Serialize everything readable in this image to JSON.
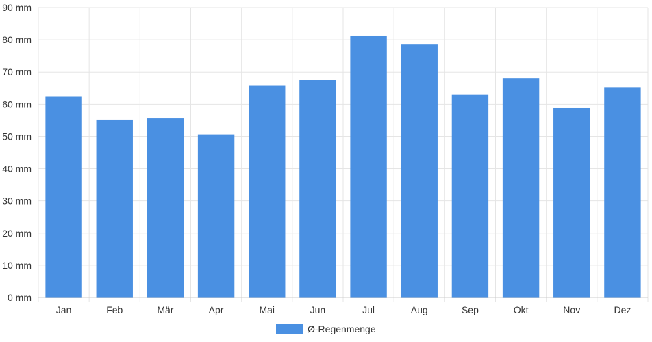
{
  "chart_data": {
    "type": "bar",
    "categories": [
      "Jan",
      "Feb",
      "Mär",
      "Apr",
      "Mai",
      "Jun",
      "Jul",
      "Aug",
      "Sep",
      "Okt",
      "Nov",
      "Dez"
    ],
    "series": [
      {
        "name": "Ø-Regenmenge",
        "values": [
          62.3,
          55.2,
          55.6,
          50.6,
          65.9,
          67.5,
          81.3,
          78.5,
          62.9,
          68.1,
          58.8,
          65.3
        ],
        "color": "#4a90e2"
      }
    ],
    "ylim": [
      0,
      90
    ],
    "y_ticks": [
      0,
      10,
      20,
      30,
      40,
      50,
      60,
      70,
      80,
      90
    ],
    "y_unit": "mm",
    "grid": true,
    "legend_position": "bottom-center"
  }
}
